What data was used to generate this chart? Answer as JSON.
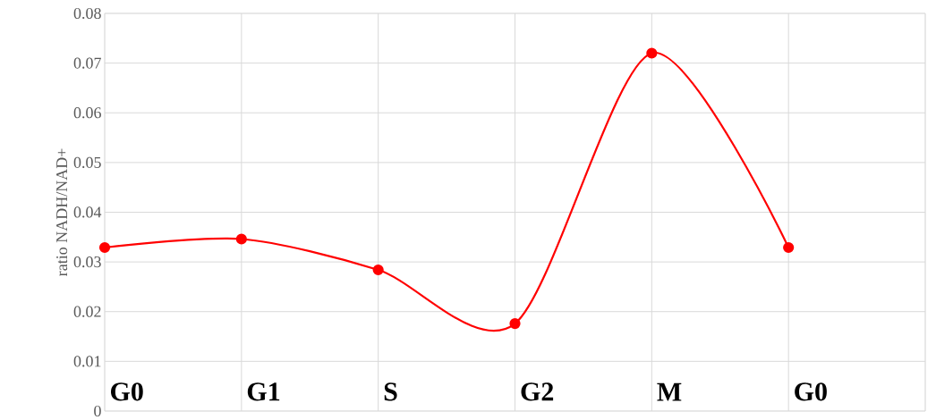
{
  "chart_data": {
    "type": "line",
    "ylabel": "ratio NADH/NAD+",
    "categories": [
      "G0",
      "G1",
      "S",
      "G2",
      "M",
      "G0"
    ],
    "series": [
      {
        "color": "#ff0000",
        "values": [
          0.0329,
          0.0346,
          0.0284,
          0.0176,
          0.072,
          0.0329
        ]
      }
    ],
    "ylim": [
      0,
      0.08
    ],
    "yticks": [
      0,
      0.01,
      0.02,
      0.03,
      0.04,
      0.05,
      0.06,
      0.07,
      0.08
    ],
    "grid": true,
    "marker": "circle",
    "line_style": "solid"
  }
}
